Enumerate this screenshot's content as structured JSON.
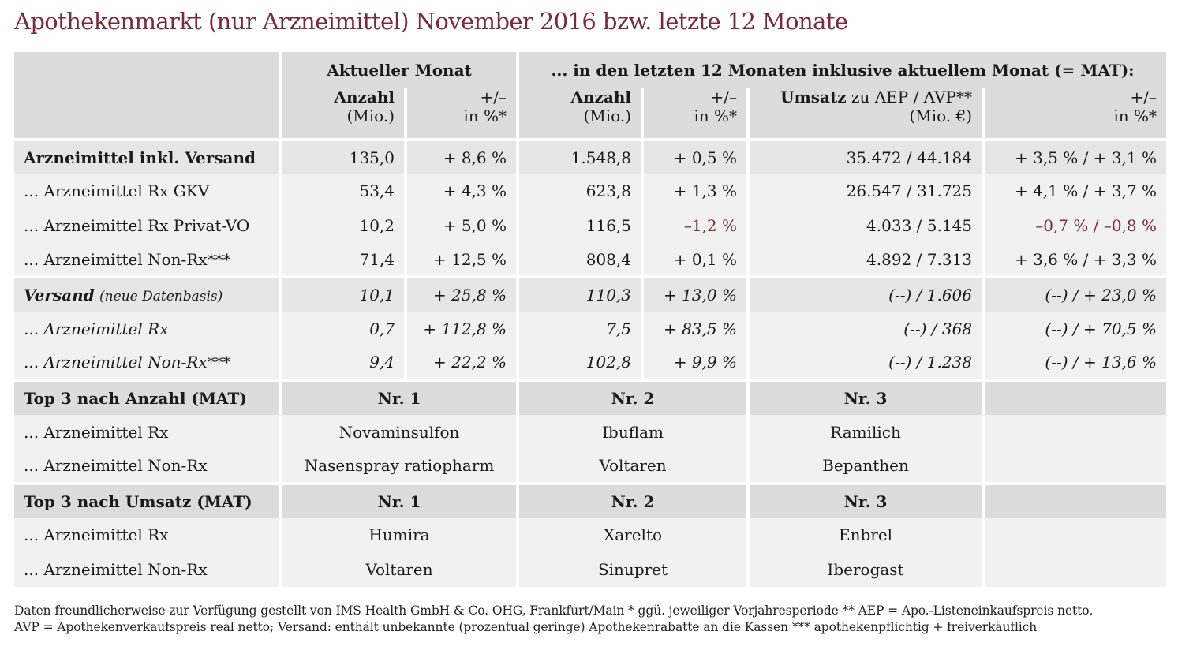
{
  "title": "Apothekenmarkt (nur Arzneimittel) November 2016 bzw. letzte 12 Monate",
  "header": {
    "group_current": "Aktueller Monat",
    "group_mat": "... in den letzten 12 Monaten inklusive aktuellem Monat (= MAT):",
    "col_anzahl": "Anzahl",
    "col_anzahl_unit": "(Mio.)",
    "col_change": "+/–",
    "col_change_unit": "in %*",
    "col_umsatz_bold": "Umsatz",
    "col_umsatz_rest": " zu AEP / AVP**",
    "col_umsatz_unit": "(Mio. €)"
  },
  "rows": [
    {
      "label": "Arzneimittel inkl. Versand",
      "a": "135,0",
      "b": "+ 8,6 %",
      "c": "1.548,8",
      "d": "+ 0,5 %",
      "e": "35.472 / 44.184",
      "f": "+ 3,5 % / + 3,1 %"
    },
    {
      "label": "... Arzneimittel Rx GKV",
      "a": "53,4",
      "b": "+ 4,3 %",
      "c": "623,8",
      "d": "+ 1,3 %",
      "e": "26.547 / 31.725",
      "f": "+ 4,1 % / + 3,7 %"
    },
    {
      "label": "... Arzneimittel Rx Privat-VO",
      "a": "10,2",
      "b": "+ 5,0 %",
      "c": "116,5",
      "d": "–1,2 %",
      "e": "4.033 / 5.145",
      "f": "–0,7 % / –0,8 %"
    },
    {
      "label": "... Arzneimittel Non-Rx***",
      "a": "71,4",
      "b": "+ 12,5 %",
      "c": "808,4",
      "d": "+ 0,1 %",
      "e": "4.892 / 7.313",
      "f": "+ 3,6 % / + 3,3 %"
    }
  ],
  "versand": {
    "label": "Versand",
    "label_note": "(neue Datenbasis)",
    "a": "10,1",
    "b": "+ 25,8 %",
    "c": "110,3",
    "d": "+ 13,0 %",
    "e": "(--) / 1.606",
    "f": "(--) / + 23,0 %"
  },
  "versand_rows": [
    {
      "label": "... Arzneimittel Rx",
      "a": "0,7",
      "b": "+ 112,8 %",
      "c": "7,5",
      "d": "+ 83,5 %",
      "e": "(--) / 368",
      "f": "(--) / + 70,5 %"
    },
    {
      "label": "... Arzneimittel Non-Rx***",
      "a": "9,4",
      "b": "+ 22,2 %",
      "c": "102,8",
      "d": "+ 9,9 %",
      "e": "(--) / 1.238",
      "f": "(--) / + 13,6 %"
    }
  ],
  "top_anzahl": {
    "label": "Top 3 nach Anzahl (MAT)",
    "nr1": "Nr. 1",
    "nr2": "Nr. 2",
    "nr3": "Nr. 3",
    "rows": [
      {
        "label": "... Arzneimittel Rx",
        "p1": "Novaminsulfon",
        "p2": "Ibuflam",
        "p3": "Ramilich"
      },
      {
        "label": "... Arzneimittel Non-Rx",
        "p1": "Nasenspray ratiopharm",
        "p2": "Voltaren",
        "p3": "Bepanthen"
      }
    ]
  },
  "top_umsatz": {
    "label": "Top 3 nach Umsatz (MAT)",
    "nr1": "Nr. 1",
    "nr2": "Nr. 2",
    "nr3": "Nr. 3",
    "rows": [
      {
        "label": "... Arzneimittel Rx",
        "p1": "Humira",
        "p2": "Xarelto",
        "p3": "Enbrel"
      },
      {
        "label": "... Arzneimittel Non-Rx",
        "p1": "Voltaren",
        "p2": "Sinupret",
        "p3": "Iberogast"
      }
    ]
  },
  "footnote": {
    "line1": "Daten freundlicherweise zur Verfügung gestellt von IMS Health GmbH & Co. OHG, Frankfurt/Main    * ggü. jeweiliger Vorjahresperiode    ** AEP = Apo.-Listeneinkaufspreis netto,",
    "line2": "AVP = Apothekenverkaufspreis real netto; Versand: enthält unbekannte (prozentual geringe) Apothekenrabatte an die Kassen    *** apothekenpflichtig + freiverkäuflich"
  },
  "colors": {
    "title": "#7a2b3b",
    "negative": "#7a2b3b",
    "header_bg": "#dcdcdc",
    "row_dark": "#e6e6e6",
    "row_light": "#f1f1f1"
  }
}
